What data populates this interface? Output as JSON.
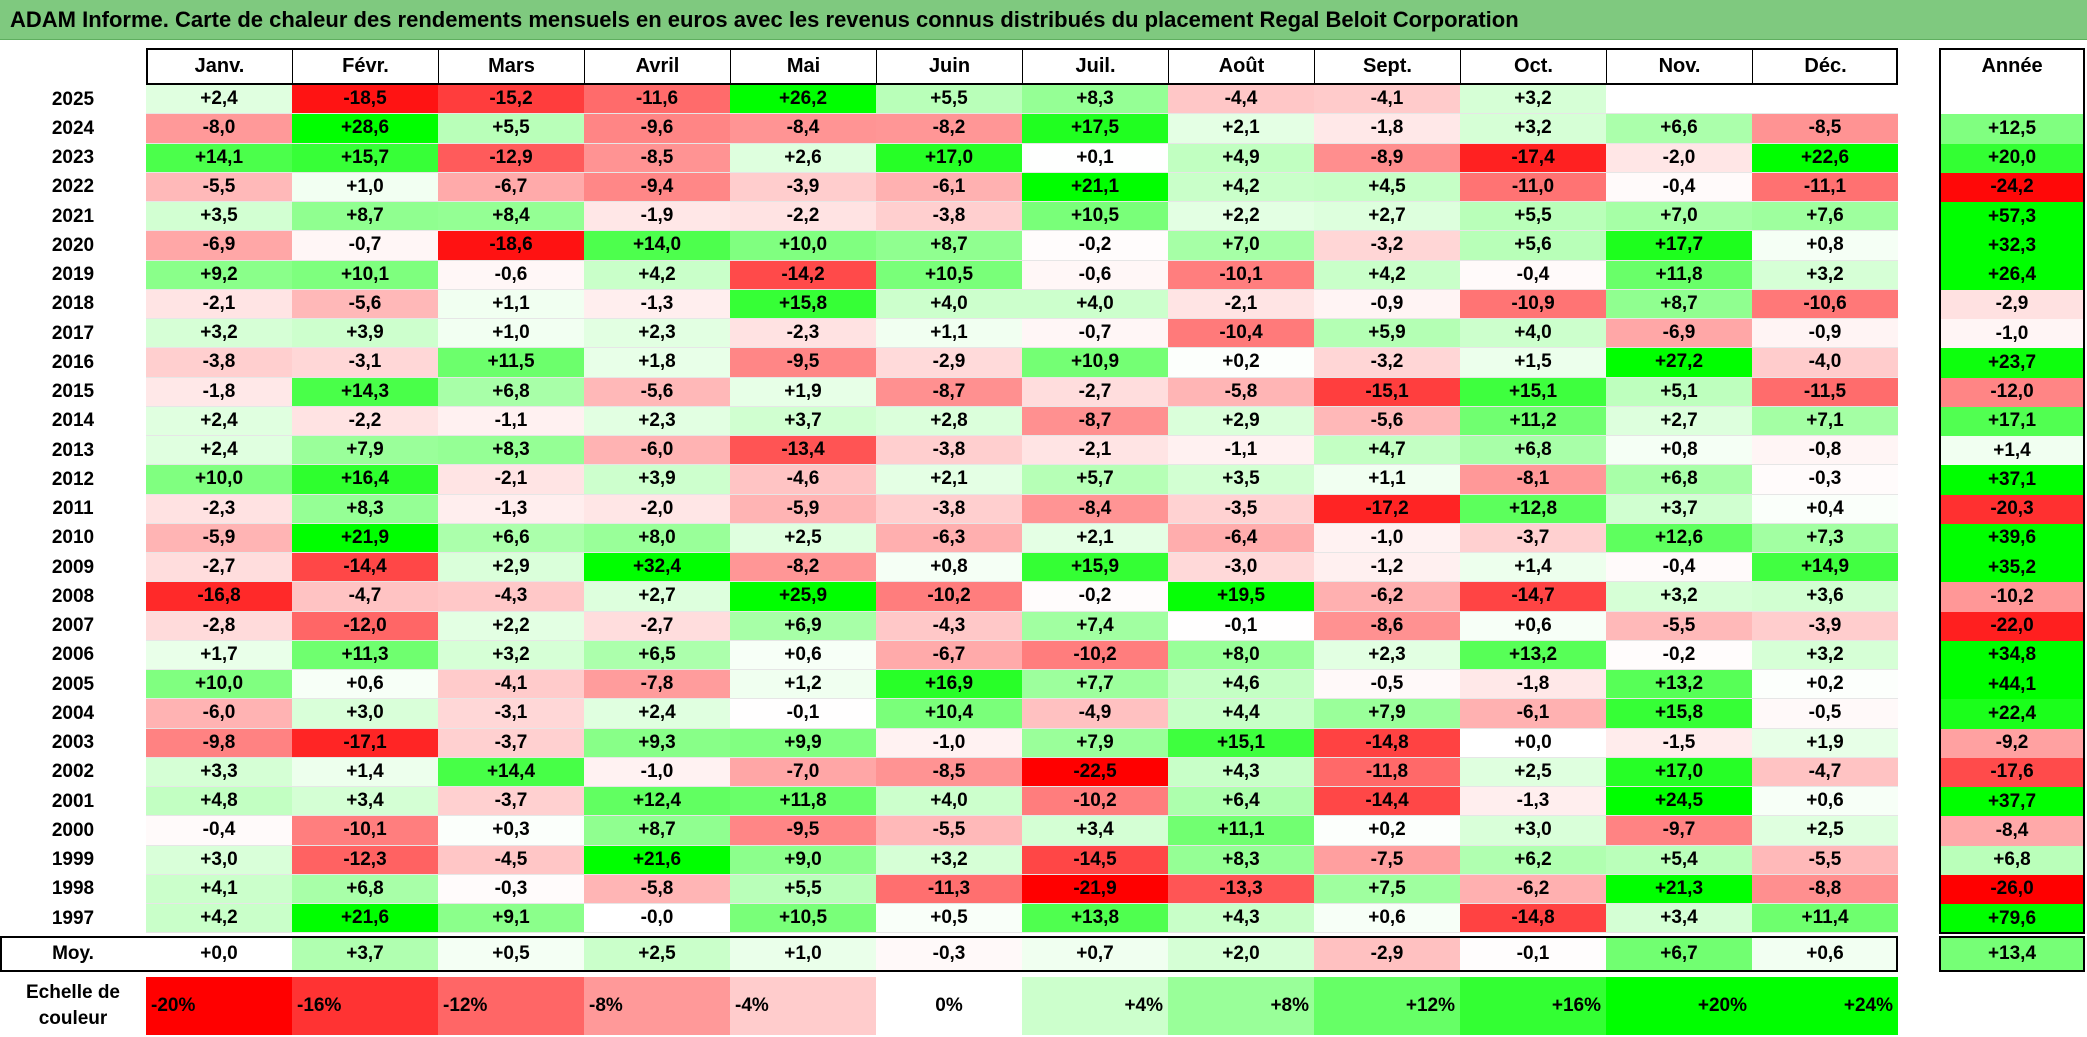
{
  "title": "ADAM Informe. Carte de chaleur des rendements mensuels en euros avec les revenus connus distribués du placement Regal Beloit Corporation",
  "chart_data": {
    "type": "heatmap",
    "columns": [
      "Janv.",
      "Févr.",
      "Mars",
      "Avril",
      "Mai",
      "Juin",
      "Juil.",
      "Août",
      "Sept.",
      "Oct.",
      "Nov.",
      "Déc."
    ],
    "year_column_label": "Année",
    "rows": [
      {
        "year": "2025",
        "values": [
          "+2,4",
          "-18,5",
          "-15,2",
          "-11,6",
          "+26,2",
          "+5,5",
          "+8,3",
          "-4,4",
          "-4,1",
          "+3,2",
          "",
          ""
        ],
        "annual": ""
      },
      {
        "year": "2024",
        "values": [
          "-8,0",
          "+28,6",
          "+5,5",
          "-9,6",
          "-8,4",
          "-8,2",
          "+17,5",
          "+2,1",
          "-1,8",
          "+3,2",
          "+6,6",
          "-8,5"
        ],
        "annual": "+12,5"
      },
      {
        "year": "2023",
        "values": [
          "+14,1",
          "+15,7",
          "-12,9",
          "-8,5",
          "+2,6",
          "+17,0",
          "+0,1",
          "+4,9",
          "-8,9",
          "-17,4",
          "-2,0",
          "+22,6"
        ],
        "annual": "+20,0"
      },
      {
        "year": "2022",
        "values": [
          "-5,5",
          "+1,0",
          "-6,7",
          "-9,4",
          "-3,9",
          "-6,1",
          "+21,1",
          "+4,2",
          "+4,5",
          "-11,0",
          "-0,4",
          "-11,1"
        ],
        "annual": "-24,2"
      },
      {
        "year": "2021",
        "values": [
          "+3,5",
          "+8,7",
          "+8,4",
          "-1,9",
          "-2,2",
          "-3,8",
          "+10,5",
          "+2,2",
          "+2,7",
          "+5,5",
          "+7,0",
          "+7,6"
        ],
        "annual": "+57,3"
      },
      {
        "year": "2020",
        "values": [
          "-6,9",
          "-0,7",
          "-18,6",
          "+14,0",
          "+10,0",
          "+8,7",
          "-0,2",
          "+7,0",
          "-3,2",
          "+5,6",
          "+17,7",
          "+0,8"
        ],
        "annual": "+32,3"
      },
      {
        "year": "2019",
        "values": [
          "+9,2",
          "+10,1",
          "-0,6",
          "+4,2",
          "-14,2",
          "+10,5",
          "-0,6",
          "-10,1",
          "+4,2",
          "-0,4",
          "+11,8",
          "+3,2"
        ],
        "annual": "+26,4"
      },
      {
        "year": "2018",
        "values": [
          "-2,1",
          "-5,6",
          "+1,1",
          "-1,3",
          "+15,8",
          "+4,0",
          "+4,0",
          "-2,1",
          "-0,9",
          "-10,9",
          "+8,7",
          "-10,6"
        ],
        "annual": "-2,9"
      },
      {
        "year": "2017",
        "values": [
          "+3,2",
          "+3,9",
          "+1,0",
          "+2,3",
          "-2,3",
          "+1,1",
          "-0,7",
          "-10,4",
          "+5,9",
          "+4,0",
          "-6,9",
          "-0,9"
        ],
        "annual": "-1,0"
      },
      {
        "year": "2016",
        "values": [
          "-3,8",
          "-3,1",
          "+11,5",
          "+1,8",
          "-9,5",
          "-2,9",
          "+10,9",
          "+0,2",
          "-3,2",
          "+1,5",
          "+27,2",
          "-4,0"
        ],
        "annual": "+23,7"
      },
      {
        "year": "2015",
        "values": [
          "-1,8",
          "+14,3",
          "+6,8",
          "-5,6",
          "+1,9",
          "-8,7",
          "-2,7",
          "-5,8",
          "-15,1",
          "+15,1",
          "+5,1",
          "-11,5"
        ],
        "annual": "-12,0"
      },
      {
        "year": "2014",
        "values": [
          "+2,4",
          "-2,2",
          "-1,1",
          "+2,3",
          "+3,7",
          "+2,8",
          "-8,7",
          "+2,9",
          "-5,6",
          "+11,2",
          "+2,7",
          "+7,1"
        ],
        "annual": "+17,1"
      },
      {
        "year": "2013",
        "values": [
          "+2,4",
          "+7,9",
          "+8,3",
          "-6,0",
          "-13,4",
          "-3,8",
          "-2,1",
          "-1,1",
          "+4,7",
          "+6,8",
          "+0,8",
          "-0,8"
        ],
        "annual": "+1,4"
      },
      {
        "year": "2012",
        "values": [
          "+10,0",
          "+16,4",
          "-2,1",
          "+3,9",
          "-4,6",
          "+2,1",
          "+5,7",
          "+3,5",
          "+1,1",
          "-8,1",
          "+6,8",
          "-0,3"
        ],
        "annual": "+37,1"
      },
      {
        "year": "2011",
        "values": [
          "-2,3",
          "+8,3",
          "-1,3",
          "-2,0",
          "-5,9",
          "-3,8",
          "-8,4",
          "-3,5",
          "-17,2",
          "+12,8",
          "+3,7",
          "+0,4"
        ],
        "annual": "-20,3"
      },
      {
        "year": "2010",
        "values": [
          "-5,9",
          "+21,9",
          "+6,6",
          "+8,0",
          "+2,5",
          "-6,3",
          "+2,1",
          "-6,4",
          "-1,0",
          "-3,7",
          "+12,6",
          "+7,3"
        ],
        "annual": "+39,6"
      },
      {
        "year": "2009",
        "values": [
          "-2,7",
          "-14,4",
          "+2,9",
          "+32,4",
          "-8,2",
          "+0,8",
          "+15,9",
          "-3,0",
          "-1,2",
          "+1,4",
          "-0,4",
          "+14,9"
        ],
        "annual": "+35,2"
      },
      {
        "year": "2008",
        "values": [
          "-16,8",
          "-4,7",
          "-4,3",
          "+2,7",
          "+25,9",
          "-10,2",
          "-0,2",
          "+19,5",
          "-6,2",
          "-14,7",
          "+3,2",
          "+3,6"
        ],
        "annual": "-10,2"
      },
      {
        "year": "2007",
        "values": [
          "-2,8",
          "-12,0",
          "+2,2",
          "-2,7",
          "+6,9",
          "-4,3",
          "+7,4",
          "-0,1",
          "-8,6",
          "+0,6",
          "-5,5",
          "-3,9"
        ],
        "annual": "-22,0"
      },
      {
        "year": "2006",
        "values": [
          "+1,7",
          "+11,3",
          "+3,2",
          "+6,5",
          "+0,6",
          "-6,7",
          "-10,2",
          "+8,0",
          "+2,3",
          "+13,2",
          "-0,2",
          "+3,2"
        ],
        "annual": "+34,8"
      },
      {
        "year": "2005",
        "values": [
          "+10,0",
          "+0,6",
          "-4,1",
          "-7,8",
          "+1,2",
          "+16,9",
          "+7,7",
          "+4,6",
          "-0,5",
          "-1,8",
          "+13,2",
          "+0,2"
        ],
        "annual": "+44,1"
      },
      {
        "year": "2004",
        "values": [
          "-6,0",
          "+3,0",
          "-3,1",
          "+2,4",
          "-0,1",
          "+10,4",
          "-4,9",
          "+4,4",
          "+7,9",
          "-6,1",
          "+15,8",
          "-0,5"
        ],
        "annual": "+22,4"
      },
      {
        "year": "2003",
        "values": [
          "-9,8",
          "-17,1",
          "-3,7",
          "+9,3",
          "+9,9",
          "-1,0",
          "+7,9",
          "+15,1",
          "-14,8",
          "+0,0",
          "-1,5",
          "+1,9"
        ],
        "annual": "-9,2"
      },
      {
        "year": "2002",
        "values": [
          "+3,3",
          "+1,4",
          "+14,4",
          "-1,0",
          "-7,0",
          "-8,5",
          "-22,5",
          "+4,3",
          "-11,8",
          "+2,5",
          "+17,0",
          "-4,7"
        ],
        "annual": "-17,6"
      },
      {
        "year": "2001",
        "values": [
          "+4,8",
          "+3,4",
          "-3,7",
          "+12,4",
          "+11,8",
          "+4,0",
          "-10,2",
          "+6,4",
          "-14,4",
          "-1,3",
          "+24,5",
          "+0,6"
        ],
        "annual": "+37,7"
      },
      {
        "year": "2000",
        "values": [
          "-0,4",
          "-10,1",
          "+0,3",
          "+8,7",
          "-9,5",
          "-5,5",
          "+3,4",
          "+11,1",
          "+0,2",
          "+3,0",
          "-9,7",
          "+2,5"
        ],
        "annual": "-8,4"
      },
      {
        "year": "1999",
        "values": [
          "+3,0",
          "-12,3",
          "-4,5",
          "+21,6",
          "+9,0",
          "+3,2",
          "-14,5",
          "+8,3",
          "-7,5",
          "+6,2",
          "+5,4",
          "-5,5"
        ],
        "annual": "+6,8"
      },
      {
        "year": "1998",
        "values": [
          "+4,1",
          "+6,8",
          "-0,3",
          "-5,8",
          "+5,5",
          "-11,3",
          "-21,9",
          "-13,3",
          "+7,5",
          "-6,2",
          "+21,3",
          "-8,8"
        ],
        "annual": "-26,0"
      },
      {
        "year": "1997",
        "values": [
          "+4,2",
          "+21,6",
          "+9,1",
          "-0,0",
          "+10,5",
          "+0,5",
          "+13,8",
          "+4,3",
          "+0,6",
          "-14,8",
          "+3,4",
          "+11,4"
        ],
        "annual": "+79,6"
      }
    ],
    "average": {
      "label": "Moy.",
      "values": [
        "+0,0",
        "+3,7",
        "+0,5",
        "+2,5",
        "+1,0",
        "-0,3",
        "+0,7",
        "+2,0",
        "-2,9",
        "-0,1",
        "+6,7",
        "+0,6"
      ],
      "annual": "+13,4"
    },
    "color_scale": {
      "label": "Echelle de couleur",
      "stops": [
        "-20%",
        "-16%",
        "-12%",
        "-8%",
        "-4%",
        "0%",
        "+4%",
        "+8%",
        "+12%",
        "+16%",
        "+20%",
        "+24%"
      ]
    },
    "colors": {
      "negative_max": "#ff0000",
      "neutral": "#ffffff",
      "positive_max": "#00ff00",
      "title_bar": "#7fc97f"
    }
  }
}
